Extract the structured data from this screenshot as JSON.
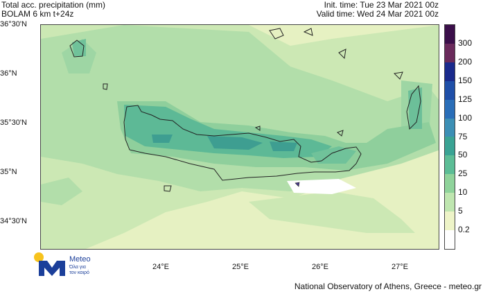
{
  "header": {
    "title_line1": "Total acc. precipitation (mm)",
    "title_line2": "BOLAM 6 km t+24z",
    "init_time": "Init. time: Tue 23 Mar 2021 00z",
    "valid_time": "Valid time: Wed 24 Mar 2021 00z"
  },
  "axes": {
    "lat_labels": [
      "36°30'N",
      "36°N",
      "35°30'N",
      "35°N",
      "34°30'N"
    ],
    "lon_labels": [
      "24°E",
      "25°E",
      "26°E",
      "27°E"
    ]
  },
  "colorbar": {
    "labels": [
      "300",
      "200",
      "150",
      "125",
      "100",
      "75",
      "50",
      "25",
      "10",
      "5",
      "0.2"
    ],
    "colors": [
      "#3b0f4a",
      "#6a2a5b",
      "#1a2a8c",
      "#1f4fa8",
      "#2a6eb8",
      "#3c8fb5",
      "#3aa394",
      "#5cbd96",
      "#8fd39b",
      "#bfe6b0",
      "#eef4c8",
      "#ffffff"
    ]
  },
  "logo": {
    "brand": "Meteo",
    "tagline_1": "Όλα για",
    "tagline_2": "τον καιρό",
    "colors": {
      "sun": "#f7c31d",
      "mark": "#1b3f9a"
    }
  },
  "footer": {
    "credit": "National Observatory of Athens, Greece - meteo.gr"
  }
}
